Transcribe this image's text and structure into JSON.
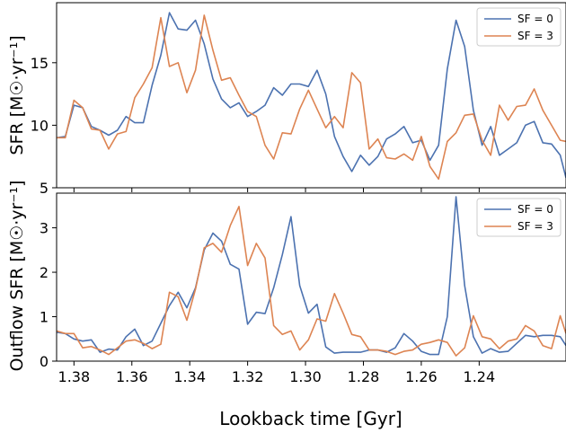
{
  "chart_data": [
    {
      "type": "line",
      "panel": "top",
      "ylabel": "SFR [M☉·yr⁻¹]",
      "xlabel": "",
      "xlim": [
        1.386,
        1.21
      ],
      "ylim": [
        5,
        19.8
      ],
      "yticks": [
        5,
        10,
        15
      ],
      "xticks": [
        1.38,
        1.36,
        1.34,
        1.32,
        1.3,
        1.28,
        1.26,
        1.24
      ],
      "xticklabels_visible": false,
      "legend": "top-right",
      "grid": false,
      "series": [
        {
          "name": "SF = 0",
          "color": "#4c72b0",
          "x": [
            1.386,
            1.383,
            1.38,
            1.377,
            1.374,
            1.371,
            1.368,
            1.365,
            1.362,
            1.359,
            1.356,
            1.353,
            1.35,
            1.347,
            1.344,
            1.341,
            1.338,
            1.335,
            1.332,
            1.329,
            1.326,
            1.323,
            1.32,
            1.317,
            1.314,
            1.311,
            1.308,
            1.305,
            1.302,
            1.299,
            1.296,
            1.293,
            1.29,
            1.287,
            1.284,
            1.281,
            1.278,
            1.275,
            1.272,
            1.269,
            1.266,
            1.263,
            1.26,
            1.257,
            1.254,
            1.251,
            1.248,
            1.245,
            1.242,
            1.239,
            1.236,
            1.233,
            1.23,
            1.227,
            1.224,
            1.221,
            1.218,
            1.215,
            1.212,
            1.21
          ],
          "y": [
            9.0,
            9.1,
            11.6,
            11.4,
            9.9,
            9.6,
            9.2,
            9.6,
            10.7,
            10.2,
            10.2,
            13.2,
            15.6,
            19.0,
            17.7,
            17.6,
            18.4,
            16.5,
            13.7,
            12.1,
            11.4,
            11.8,
            10.7,
            11.1,
            11.6,
            13.0,
            12.4,
            13.3,
            13.3,
            13.1,
            14.4,
            12.5,
            9.1,
            7.5,
            6.3,
            7.6,
            6.8,
            7.5,
            8.9,
            9.3,
            9.9,
            8.6,
            8.8,
            7.2,
            8.4,
            14.5,
            18.4,
            16.3,
            11.2,
            8.4,
            9.9,
            7.6,
            8.1,
            8.6,
            10.0,
            10.3,
            8.6,
            8.5,
            7.6,
            5.8
          ]
        },
        {
          "name": "SF = 3",
          "color": "#dd8452",
          "x": [
            1.386,
            1.383,
            1.38,
            1.377,
            1.374,
            1.371,
            1.368,
            1.365,
            1.362,
            1.359,
            1.356,
            1.353,
            1.35,
            1.347,
            1.344,
            1.341,
            1.338,
            1.335,
            1.332,
            1.329,
            1.326,
            1.323,
            1.32,
            1.317,
            1.314,
            1.311,
            1.308,
            1.305,
            1.302,
            1.299,
            1.296,
            1.293,
            1.29,
            1.287,
            1.284,
            1.281,
            1.278,
            1.275,
            1.272,
            1.269,
            1.266,
            1.263,
            1.26,
            1.257,
            1.254,
            1.251,
            1.248,
            1.245,
            1.242,
            1.239,
            1.236,
            1.233,
            1.23,
            1.227,
            1.224,
            1.221,
            1.218,
            1.215,
            1.212,
            1.21
          ],
          "y": [
            9.0,
            9.0,
            12.0,
            11.4,
            9.7,
            9.6,
            8.1,
            9.3,
            9.5,
            12.2,
            13.3,
            14.6,
            18.6,
            14.7,
            15.0,
            12.6,
            14.4,
            18.8,
            16.0,
            13.6,
            13.8,
            12.4,
            11.1,
            10.7,
            8.4,
            7.3,
            9.4,
            9.3,
            11.3,
            12.8,
            11.3,
            9.8,
            10.7,
            9.8,
            14.2,
            13.4,
            8.1,
            8.9,
            7.4,
            7.3,
            7.7,
            7.2,
            9.1,
            6.7,
            5.7,
            8.7,
            9.4,
            10.8,
            10.9,
            8.8,
            7.6,
            11.6,
            10.4,
            11.5,
            11.6,
            12.9,
            11.2,
            10.0,
            8.8,
            8.7
          ]
        }
      ],
      "legend_entries": [
        "SF = 0",
        "SF = 3"
      ]
    },
    {
      "type": "line",
      "panel": "bottom",
      "ylabel": "Outflow SFR [M☉·yr⁻¹]",
      "xlabel": "Lookback time [Gyr]",
      "xlim": [
        1.386,
        1.21
      ],
      "ylim": [
        0,
        3.78
      ],
      "yticks": [
        0,
        1,
        2,
        3
      ],
      "xticks": [
        1.38,
        1.36,
        1.34,
        1.32,
        1.3,
        1.28,
        1.26,
        1.24
      ],
      "xticklabels": [
        "1.38",
        "1.36",
        "1.34",
        "1.32",
        "1.30",
        "1.28",
        "1.26",
        "1.24"
      ],
      "legend": "top-right",
      "grid": false,
      "series": [
        {
          "name": "SF = 0",
          "color": "#4c72b0",
          "x": [
            1.386,
            1.383,
            1.38,
            1.377,
            1.374,
            1.371,
            1.368,
            1.365,
            1.362,
            1.359,
            1.356,
            1.353,
            1.35,
            1.347,
            1.344,
            1.341,
            1.338,
            1.335,
            1.332,
            1.329,
            1.326,
            1.323,
            1.32,
            1.317,
            1.314,
            1.311,
            1.308,
            1.305,
            1.302,
            1.299,
            1.296,
            1.293,
            1.29,
            1.287,
            1.284,
            1.281,
            1.278,
            1.275,
            1.272,
            1.269,
            1.266,
            1.263,
            1.26,
            1.257,
            1.254,
            1.251,
            1.248,
            1.245,
            1.242,
            1.239,
            1.236,
            1.233,
            1.23,
            1.227,
            1.224,
            1.221,
            1.218,
            1.215,
            1.212,
            1.21
          ],
          "y": [
            0.65,
            0.62,
            0.5,
            0.45,
            0.48,
            0.2,
            0.27,
            0.25,
            0.55,
            0.72,
            0.35,
            0.45,
            0.85,
            1.25,
            1.55,
            1.2,
            1.65,
            2.5,
            2.88,
            2.7,
            2.18,
            2.07,
            0.83,
            1.1,
            1.07,
            1.65,
            2.4,
            3.25,
            1.7,
            1.08,
            1.28,
            0.32,
            0.18,
            0.2,
            0.2,
            0.2,
            0.25,
            0.25,
            0.2,
            0.3,
            0.62,
            0.45,
            0.22,
            0.15,
            0.15,
            1.0,
            3.7,
            1.7,
            0.55,
            0.18,
            0.28,
            0.2,
            0.22,
            0.4,
            0.58,
            0.55,
            0.58,
            0.58,
            0.55,
            0.35
          ]
        },
        {
          "name": "SF = 3",
          "color": "#dd8452",
          "x": [
            1.386,
            1.383,
            1.38,
            1.377,
            1.374,
            1.371,
            1.368,
            1.365,
            1.362,
            1.359,
            1.356,
            1.353,
            1.35,
            1.347,
            1.344,
            1.341,
            1.338,
            1.335,
            1.332,
            1.329,
            1.326,
            1.323,
            1.32,
            1.317,
            1.314,
            1.311,
            1.308,
            1.305,
            1.302,
            1.299,
            1.296,
            1.293,
            1.29,
            1.287,
            1.284,
            1.281,
            1.278,
            1.275,
            1.272,
            1.269,
            1.266,
            1.263,
            1.26,
            1.257,
            1.254,
            1.251,
            1.248,
            1.245,
            1.242,
            1.239,
            1.236,
            1.233,
            1.23,
            1.227,
            1.224,
            1.221,
            1.218,
            1.215,
            1.212,
            1.21
          ],
          "y": [
            0.68,
            0.62,
            0.62,
            0.3,
            0.33,
            0.25,
            0.15,
            0.3,
            0.45,
            0.48,
            0.4,
            0.28,
            0.38,
            1.55,
            1.45,
            0.92,
            1.62,
            2.55,
            2.65,
            2.45,
            3.05,
            3.48,
            2.15,
            2.65,
            2.32,
            0.8,
            0.6,
            0.68,
            0.25,
            0.48,
            0.95,
            0.9,
            1.52,
            1.08,
            0.6,
            0.55,
            0.25,
            0.25,
            0.22,
            0.15,
            0.22,
            0.25,
            0.38,
            0.42,
            0.48,
            0.42,
            0.12,
            0.3,
            1.02,
            0.55,
            0.5,
            0.28,
            0.45,
            0.5,
            0.8,
            0.68,
            0.35,
            0.28,
            1.02,
            0.62
          ]
        }
      ],
      "legend_entries": [
        "SF = 0",
        "SF = 3"
      ]
    }
  ]
}
